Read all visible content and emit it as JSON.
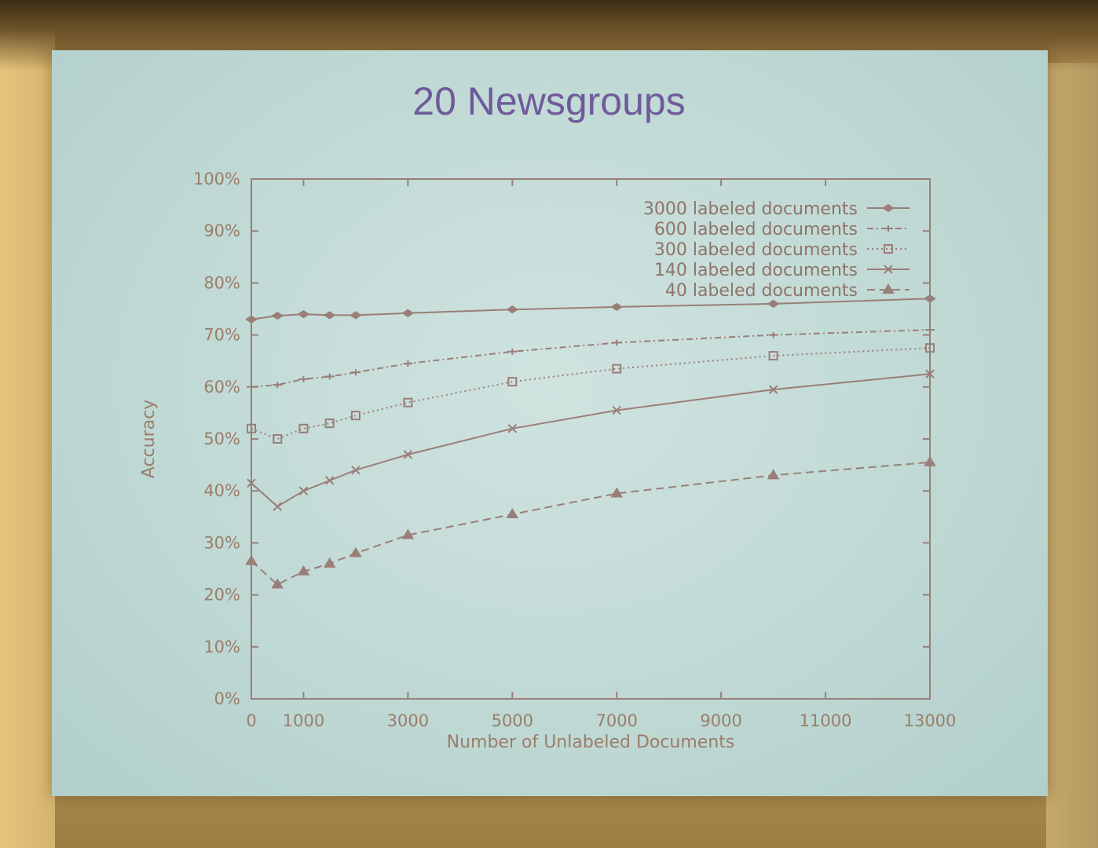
{
  "slide": {
    "title": "20 Newsgroups"
  },
  "chart_data": {
    "type": "line",
    "title": "",
    "xlabel": "Number of Unlabeled Documents",
    "ylabel": "Accuracy",
    "xlim": [
      0,
      13000
    ],
    "ylim": [
      0,
      100
    ],
    "x_ticks": [
      0,
      1000,
      3000,
      5000,
      7000,
      9000,
      11000,
      13000
    ],
    "x_tick_labels": [
      "0",
      "1000",
      "3000",
      "5000",
      "7000",
      "9000",
      "11000",
      "13000"
    ],
    "y_ticks": [
      0,
      10,
      20,
      30,
      40,
      50,
      60,
      70,
      80,
      90,
      100
    ],
    "y_tick_labels": [
      "0%",
      "10%",
      "20%",
      "30%",
      "40%",
      "50%",
      "60%",
      "70%",
      "80%",
      "90%",
      "100%"
    ],
    "grid": false,
    "legend_position": "top-right",
    "line_color": "#9a7e78",
    "series": [
      {
        "name": "3000 labeled documents",
        "marker": "diamond",
        "dash": "solid",
        "x": [
          0,
          500,
          1000,
          1500,
          2000,
          3000,
          5000,
          7000,
          10000,
          13000
        ],
        "y": [
          73,
          73.7,
          74,
          73.8,
          73.8,
          74.2,
          74.9,
          75.4,
          76,
          77
        ]
      },
      {
        "name": "600 labeled documents",
        "marker": "plus",
        "dash": "dashdot",
        "x": [
          0,
          500,
          1000,
          1500,
          2000,
          3000,
          5000,
          7000,
          10000,
          13000
        ],
        "y": [
          60,
          60.4,
          61.5,
          62,
          62.8,
          64.5,
          66.8,
          68.5,
          70,
          71
        ]
      },
      {
        "name": "300 labeled documents",
        "marker": "square",
        "dash": "dotted",
        "x": [
          0,
          500,
          1000,
          1500,
          2000,
          3000,
          5000,
          7000,
          10000,
          13000
        ],
        "y": [
          52,
          50,
          52,
          53,
          54.5,
          57,
          61,
          63.5,
          66,
          67.5
        ]
      },
      {
        "name": "140 labeled documents",
        "marker": "cross",
        "dash": "solid",
        "x": [
          0,
          500,
          1000,
          1500,
          2000,
          3000,
          5000,
          7000,
          10000,
          13000
        ],
        "y": [
          41.5,
          37,
          40,
          42,
          44,
          47,
          52,
          55.5,
          59.5,
          62.5
        ]
      },
      {
        "name": "40 labeled documents",
        "marker": "triangle",
        "dash": "dashed",
        "x": [
          0,
          500,
          1000,
          1500,
          2000,
          3000,
          5000,
          7000,
          10000,
          13000
        ],
        "y": [
          26.5,
          22,
          24.5,
          26,
          28,
          31.5,
          35.5,
          39.5,
          43,
          45.5
        ]
      }
    ]
  }
}
